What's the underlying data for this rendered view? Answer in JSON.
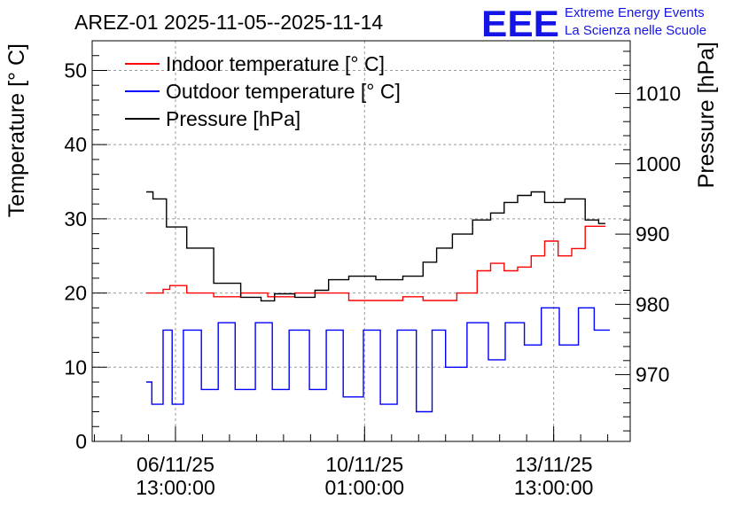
{
  "chart_data": {
    "type": "line",
    "title": "AREZ-01 2025-11-05--2025-11-14",
    "ylabel": "Temperature [° C]",
    "y2label": "Pressure [hPa]",
    "ylim": [
      0,
      54
    ],
    "y2lim": [
      960.5,
      1017.5
    ],
    "xlim": [
      "2025-11-05 00:00:00",
      "2025-11-14 23:00:00"
    ],
    "y_ticks": [
      0,
      10,
      20,
      30,
      40,
      50
    ],
    "y2_ticks": [
      970,
      980,
      990,
      1000,
      1010
    ],
    "x_ticks": [
      {
        "date": "06/11/25",
        "time": "13:00:00",
        "at": "2025-11-06 13:00:00"
      },
      {
        "date": "10/11/25",
        "time": "01:00:00",
        "at": "2025-11-10 01:00:00"
      },
      {
        "date": "13/11/25",
        "time": "13:00:00",
        "at": "2025-11-13 13:00:00"
      }
    ],
    "grid": true,
    "legend": "top-left",
    "colors": {
      "indoor": "#ff0000",
      "outdoor": "#0000ff",
      "pressure": "#000000"
    },
    "series": [
      {
        "name": "Indoor temperature [° C]",
        "axis": "left",
        "x": [
          "2025-11-06 00:00:00",
          "2025-11-06 03:00:00",
          "2025-11-06 06:00:00",
          "2025-11-06 09:00:00",
          "2025-11-06 12:00:00",
          "2025-11-07 00:00:00",
          "2025-11-07 12:00:00",
          "2025-11-08 00:00:00",
          "2025-11-08 12:00:00",
          "2025-11-09 00:00:00",
          "2025-11-09 12:00:00",
          "2025-11-10 00:00:00",
          "2025-11-10 12:00:00",
          "2025-11-11 00:00:00",
          "2025-11-11 06:00:00",
          "2025-11-11 12:00:00",
          "2025-11-12 00:00:00",
          "2025-11-12 06:00:00",
          "2025-11-12 12:00:00",
          "2025-11-12 18:00:00",
          "2025-11-13 00:00:00",
          "2025-11-13 06:00:00",
          "2025-11-13 12:00:00",
          "2025-11-13 18:00:00",
          "2025-11-14 00:00:00",
          "2025-11-14 06:00:00",
          "2025-11-14 12:00:00"
        ],
        "values": [
          20,
          20,
          20,
          20.5,
          21,
          20,
          19.5,
          20,
          19.5,
          20,
          20,
          19,
          19,
          19.5,
          19,
          19,
          20,
          23,
          24,
          23,
          23.5,
          25,
          27,
          25,
          26,
          29,
          29
        ]
      },
      {
        "name": "Outdoor temperature [° C]",
        "axis": "left",
        "x": [
          "2025-11-06 00:00:00",
          "2025-11-06 05:00:00",
          "2025-11-06 10:00:00",
          "2025-11-06 13:00:00",
          "2025-11-06 20:00:00",
          "2025-11-07 05:00:00",
          "2025-11-07 11:00:00",
          "2025-11-07 20:00:00",
          "2025-11-08 05:00:00",
          "2025-11-08 11:00:00",
          "2025-11-08 20:00:00",
          "2025-11-09 05:00:00",
          "2025-11-09 11:00:00",
          "2025-11-09 20:00:00",
          "2025-11-10 05:00:00",
          "2025-11-10 11:00:00",
          "2025-11-10 20:00:00",
          "2025-11-11 04:00:00",
          "2025-11-11 10:00:00",
          "2025-11-11 16:00:00",
          "2025-11-12 05:00:00",
          "2025-11-12 11:00:00",
          "2025-11-12 20:00:00",
          "2025-11-13 04:00:00",
          "2025-11-13 11:00:00",
          "2025-11-13 20:00:00",
          "2025-11-14 04:00:00",
          "2025-11-14 10:00:00",
          "2025-11-14 14:00:00"
        ],
        "values": [
          8,
          5,
          15,
          5,
          15,
          7,
          16,
          7,
          16,
          7,
          15,
          7,
          15,
          6,
          15,
          5,
          15,
          4,
          15,
          10,
          16,
          11,
          16,
          13,
          18,
          13,
          18,
          15,
          15
        ]
      },
      {
        "name": "Pressure [hPa]",
        "axis": "right",
        "x": [
          "2025-11-06 00:00:00",
          "2025-11-06 06:00:00",
          "2025-11-06 12:00:00",
          "2025-11-07 00:00:00",
          "2025-11-07 12:00:00",
          "2025-11-08 00:00:00",
          "2025-11-08 06:00:00",
          "2025-11-08 12:00:00",
          "2025-11-09 00:00:00",
          "2025-11-09 06:00:00",
          "2025-11-09 12:00:00",
          "2025-11-10 00:00:00",
          "2025-11-10 12:00:00",
          "2025-11-11 00:00:00",
          "2025-11-11 06:00:00",
          "2025-11-11 12:00:00",
          "2025-11-11 20:00:00",
          "2025-11-12 06:00:00",
          "2025-11-12 12:00:00",
          "2025-11-12 18:00:00",
          "2025-11-13 00:00:00",
          "2025-11-13 06:00:00",
          "2025-11-13 12:00:00",
          "2025-11-14 00:00:00",
          "2025-11-14 06:00:00",
          "2025-11-14 12:00:00"
        ],
        "values": [
          996,
          995,
          991,
          988,
          983,
          981,
          980.5,
          981.5,
          981,
          982,
          983.5,
          984,
          983.5,
          984,
          986,
          988,
          990,
          992,
          993,
          994.5,
          995.5,
          996,
          994.5,
          995,
          992,
          991.5
        ]
      }
    ]
  },
  "logo": {
    "text": "EEE",
    "line1": "Extreme Energy Events",
    "line2": "La Scienza nelle Scuole"
  }
}
